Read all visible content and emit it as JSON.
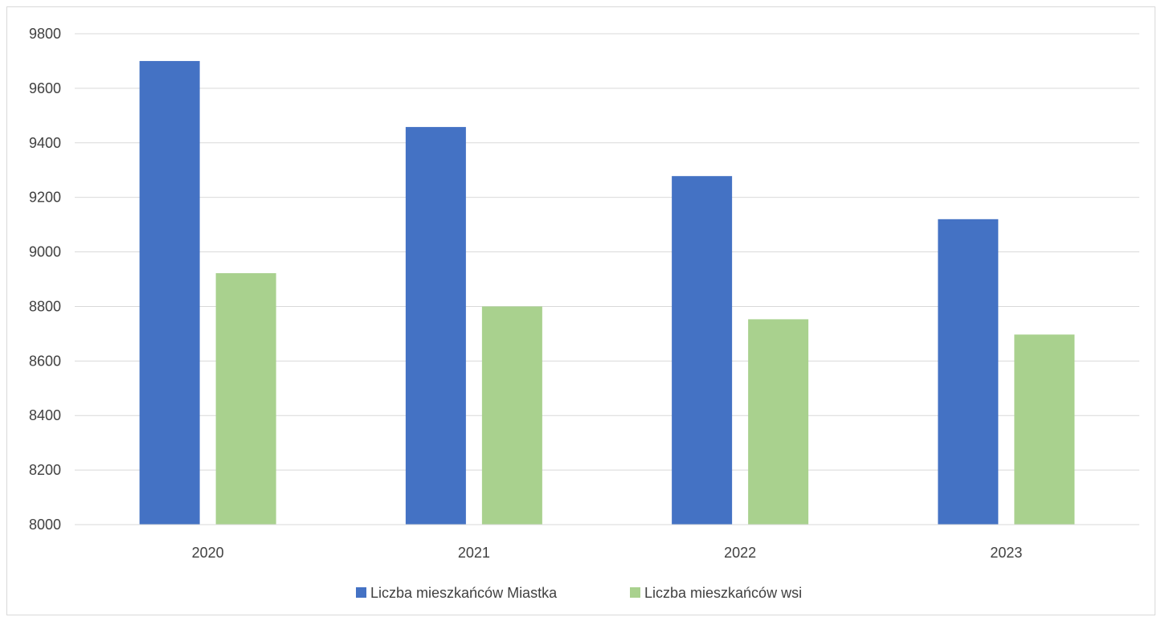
{
  "chart_data": {
    "type": "bar",
    "title": "",
    "xlabel": "",
    "ylabel": "",
    "categories": [
      "2020",
      "2021",
      "2022",
      "2023"
    ],
    "series": [
      {
        "name": "Liczba mieszkańców Miastka",
        "color": "#4472c4",
        "values": [
          9700,
          9458,
          9278,
          9120
        ]
      },
      {
        "name": "Liczba mieszkańców wsi",
        "color": "#a9d18e",
        "values": [
          8922,
          8800,
          8753,
          8697
        ]
      }
    ],
    "ylim": [
      8000,
      9800
    ],
    "yticks": [
      8000,
      8200,
      8400,
      8600,
      8800,
      9000,
      9200,
      9400,
      9600,
      9800
    ],
    "grid": true,
    "legend_position": "bottom"
  }
}
